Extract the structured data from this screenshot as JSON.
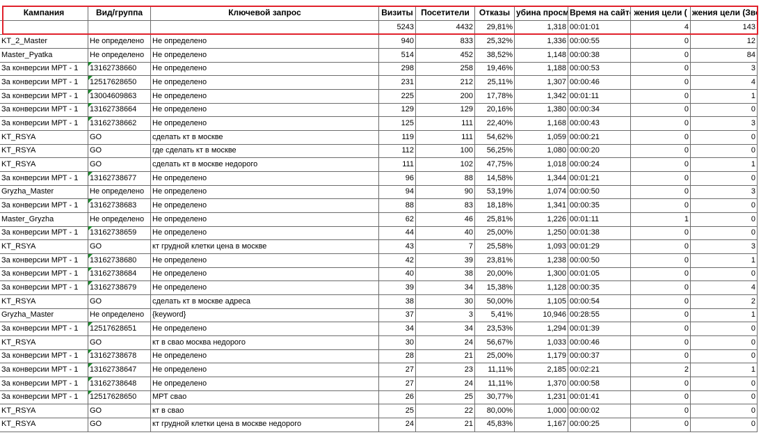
{
  "table": {
    "header": [
      "Кампания",
      "Вид/группа",
      "Ключевой запрос",
      "Визиты",
      "Посетители",
      "Отказы",
      "убина просмо",
      "Время на сайте",
      "жения цели (",
      "жения цели (Зво"
    ],
    "totals": [
      "5243",
      "4432",
      "29,81%",
      "1,318",
      "00:01:01",
      "4",
      "143"
    ],
    "rows": [
      [
        "KT_2_Master",
        "Не определено",
        "Не определено",
        "940",
        "833",
        "25,32%",
        "1,336",
        "00:00:55",
        "0",
        "12"
      ],
      [
        "Master_Pyatka",
        "Не определено",
        "Не определено",
        "514",
        "452",
        "38,52%",
        "1,148",
        "00:00:38",
        "0",
        "84"
      ],
      [
        "За конверсии МРТ - 1",
        "13162738660",
        "Не определено",
        "298",
        "258",
        "19,46%",
        "1,188",
        "00:00:53",
        "0",
        "3"
      ],
      [
        "За конверсии МРТ - 1",
        "12517628650",
        "Не определено",
        "231",
        "212",
        "25,11%",
        "1,307",
        "00:00:46",
        "0",
        "4"
      ],
      [
        "За конверсии МРТ - 1",
        "13004609863",
        "Не определено",
        "225",
        "200",
        "17,78%",
        "1,342",
        "00:01:11",
        "0",
        "1"
      ],
      [
        "За конверсии МРТ - 1",
        "13162738664",
        "Не определено",
        "129",
        "129",
        "20,16%",
        "1,380",
        "00:00:34",
        "0",
        "0"
      ],
      [
        "За конверсии МРТ - 1",
        "13162738662",
        "Не определено",
        "125",
        "111",
        "22,40%",
        "1,168",
        "00:00:43",
        "0",
        "3"
      ],
      [
        "KT_RSYA",
        "GO",
        "сделать кт в москве",
        "119",
        "111",
        "54,62%",
        "1,059",
        "00:00:21",
        "0",
        "0"
      ],
      [
        "KT_RSYA",
        "GO",
        "где сделать кт в москве",
        "112",
        "100",
        "56,25%",
        "1,080",
        "00:00:20",
        "0",
        "0"
      ],
      [
        "KT_RSYA",
        "GO",
        "сделать кт в москве недорого",
        "111",
        "102",
        "47,75%",
        "1,018",
        "00:00:24",
        "0",
        "1"
      ],
      [
        "За конверсии МРТ - 1",
        "13162738677",
        "Не определено",
        "96",
        "88",
        "14,58%",
        "1,344",
        "00:01:21",
        "0",
        "0"
      ],
      [
        "Gryzha_Master",
        "Не определено",
        "Не определено",
        "94",
        "90",
        "53,19%",
        "1,074",
        "00:00:50",
        "0",
        "3"
      ],
      [
        "За конверсии МРТ - 1",
        "13162738683",
        "Не определено",
        "88",
        "83",
        "18,18%",
        "1,341",
        "00:00:35",
        "0",
        "0"
      ],
      [
        "Master_Gryzha",
        "Не определено",
        "Не определено",
        "62",
        "46",
        "25,81%",
        "1,226",
        "00:01:11",
        "1",
        "0"
      ],
      [
        "За конверсии МРТ - 1",
        "13162738659",
        "Не определено",
        "44",
        "40",
        "25,00%",
        "1,250",
        "00:01:38",
        "0",
        "0"
      ],
      [
        "KT_RSYA",
        "GO",
        "кт грудной клетки цена в москве",
        "43",
        "7",
        "25,58%",
        "1,093",
        "00:01:29",
        "0",
        "3"
      ],
      [
        "За конверсии МРТ - 1",
        "13162738680",
        "Не определено",
        "42",
        "39",
        "23,81%",
        "1,238",
        "00:00:50",
        "0",
        "1"
      ],
      [
        "За конверсии МРТ - 1",
        "13162738684",
        "Не определено",
        "40",
        "38",
        "20,00%",
        "1,300",
        "00:01:05",
        "0",
        "0"
      ],
      [
        "За конверсии МРТ - 1",
        "13162738679",
        "Не определено",
        "39",
        "34",
        "15,38%",
        "1,128",
        "00:00:35",
        "0",
        "4"
      ],
      [
        "KT_RSYA",
        "GO",
        "сделать кт в москве адреса",
        "38",
        "30",
        "50,00%",
        "1,105",
        "00:00:54",
        "0",
        "2"
      ],
      [
        "Gryzha_Master",
        "Не определено",
        "{keyword}",
        "37",
        "3",
        "5,41%",
        "10,946",
        "00:28:55",
        "0",
        "1"
      ],
      [
        "За конверсии МРТ - 1",
        "12517628651",
        "Не определено",
        "34",
        "34",
        "23,53%",
        "1,294",
        "00:01:39",
        "0",
        "0"
      ],
      [
        "KT_RSYA",
        "GO",
        "кт в свао москва недорого",
        "30",
        "24",
        "56,67%",
        "1,033",
        "00:00:46",
        "0",
        "0"
      ],
      [
        "За конверсии МРТ - 1",
        "13162738678",
        "Не определено",
        "28",
        "21",
        "25,00%",
        "1,179",
        "00:00:37",
        "0",
        "0"
      ],
      [
        "За конверсии МРТ - 1",
        "13162738647",
        "Не определено",
        "27",
        "23",
        "11,11%",
        "2,185",
        "00:02:21",
        "2",
        "1"
      ],
      [
        "За конверсии МРТ - 1",
        "13162738648",
        "Не определено",
        "27",
        "24",
        "11,11%",
        "1,370",
        "00:00:58",
        "0",
        "0"
      ],
      [
        "За конверсии МРТ - 1",
        "12517628650",
        "МРТ свао",
        "26",
        "25",
        "30,77%",
        "1,231",
        "00:01:41",
        "0",
        "0"
      ],
      [
        "KT_RSYA",
        "GO",
        "кт в свао",
        "25",
        "22",
        "80,00%",
        "1,000",
        "00:00:02",
        "0",
        "0"
      ],
      [
        "KT_RSYA",
        "GO",
        "кт грудной клетки цена в москве недорого",
        "24",
        "21",
        "45,83%",
        "1,167",
        "00:00:25",
        "0",
        "0"
      ]
    ]
  }
}
